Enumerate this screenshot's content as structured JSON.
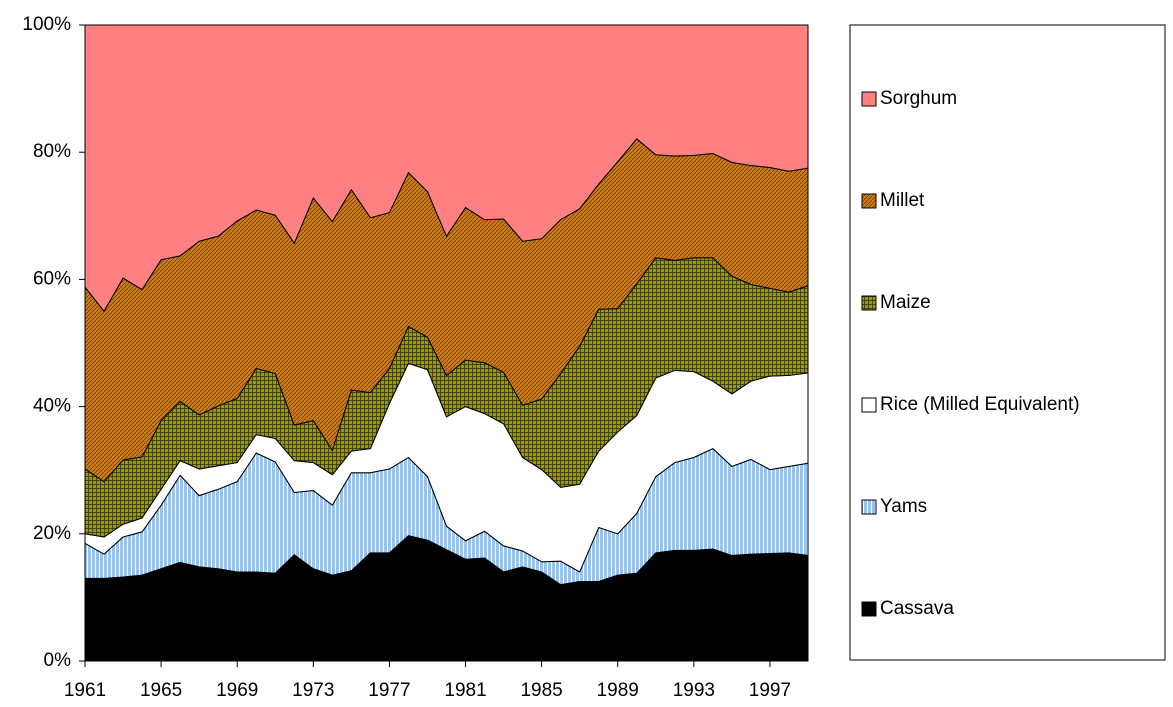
{
  "chart_data": {
    "type": "stacked_area_percent",
    "x": [
      1961,
      1962,
      1963,
      1964,
      1965,
      1966,
      1967,
      1968,
      1969,
      1970,
      1971,
      1972,
      1973,
      1974,
      1975,
      1976,
      1977,
      1978,
      1979,
      1980,
      1981,
      1982,
      1983,
      1984,
      1985,
      1986,
      1987,
      1988,
      1989,
      1990,
      1991,
      1992,
      1993,
      1994,
      1995,
      1996,
      1997,
      1998,
      1999
    ],
    "xlim": [
      1961,
      1999
    ],
    "xticks": [
      1961,
      1965,
      1969,
      1973,
      1977,
      1981,
      1985,
      1989,
      1993,
      1997
    ],
    "ylim": [
      0,
      100
    ],
    "yticks": [
      {
        "value": 0,
        "label": "0%"
      },
      {
        "value": 20,
        "label": "20%"
      },
      {
        "value": 40,
        "label": "40%"
      },
      {
        "value": 60,
        "label": "60%"
      },
      {
        "value": 80,
        "label": "80%"
      },
      {
        "value": 100,
        "label": "100%"
      }
    ],
    "legend": "right",
    "series": [
      {
        "name": "Cassava",
        "color": "#000000",
        "values": [
          13,
          13,
          13.2,
          13.5,
          14.5,
          15.5,
          14.8,
          14.5,
          14,
          14,
          13.8,
          16.7,
          14.5,
          13.5,
          14.2,
          17,
          17,
          19.7,
          19,
          17.5,
          16,
          16.2,
          14,
          14.8,
          14,
          12,
          12.5,
          12.5,
          13.5,
          13.8,
          17,
          17.4,
          17.4,
          17.6,
          16.6,
          16.8,
          16.9,
          17,
          16.6
        ]
      },
      {
        "name": "Yams",
        "color": "#99c3ec",
        "values": [
          5.5,
          3.8,
          6.3,
          6.8,
          10,
          13.7,
          11.2,
          12.5,
          14.2,
          18.7,
          17.5,
          9.8,
          12.3,
          11,
          15.4,
          12.6,
          13.2,
          12.3,
          10,
          3.7,
          2.9,
          4.2,
          4.1,
          2.5,
          1.6,
          3.7,
          1.5,
          8.5,
          6.5,
          9.4,
          12,
          13.8,
          14.6,
          15.8,
          14,
          14.9,
          13.2,
          13.6,
          14.5
        ]
      },
      {
        "name": "Rice (Milled Equivalent)",
        "color": "#ffffff",
        "values": [
          1.5,
          2.7,
          2,
          2.2,
          2.5,
          2.3,
          4.2,
          3.7,
          3,
          2.9,
          3.7,
          5,
          4.4,
          4.8,
          3.4,
          3.8,
          10.3,
          14.8,
          16.8,
          17.2,
          21.1,
          18.5,
          19.2,
          14.7,
          14.5,
          11.6,
          13.8,
          12,
          16,
          15.4,
          15.5,
          14.5,
          13.5,
          10.6,
          11.4,
          12.3,
          14.7,
          14.3,
          14.2
        ]
      },
      {
        "name": "Maize",
        "color": "#999900",
        "values": [
          10.2,
          8.7,
          10.1,
          9.6,
          10.8,
          9.3,
          8.5,
          9.4,
          10.1,
          10.4,
          10.2,
          5.6,
          6.6,
          3.8,
          9.6,
          8.8,
          5.5,
          5.8,
          5.1,
          6.5,
          7.3,
          8,
          8.1,
          8.2,
          11.1,
          17.9,
          21.7,
          22.3,
          19.4,
          20.7,
          18.9,
          17.3,
          17.9,
          19.4,
          18.5,
          15.2,
          13.8,
          13.1,
          13.7
        ]
      },
      {
        "name": "Millet",
        "color": "#cc7a1a",
        "values": [
          28.6,
          26.8,
          28.6,
          26.3,
          25.3,
          22.9,
          27.3,
          26.7,
          27.9,
          24.9,
          24.9,
          28.6,
          35,
          36,
          31.5,
          27.5,
          24.5,
          24.2,
          22.9,
          21.9,
          24,
          22.5,
          24.1,
          25.8,
          25.2,
          24.2,
          21.6,
          19.7,
          23.1,
          22.8,
          16.2,
          16.4,
          16.1,
          16.4,
          17.9,
          18.7,
          19,
          19,
          18.5
        ]
      },
      {
        "name": "Sorghum",
        "color": "#ff8080",
        "values": [
          41.2,
          45,
          39.8,
          41.6,
          36.9,
          36.3,
          34,
          33.2,
          30.8,
          29.1,
          29.9,
          34.3,
          27.2,
          30.9,
          25.9,
          30.3,
          29.5,
          23.2,
          26.2,
          33.2,
          28.7,
          30.6,
          30.5,
          34,
          33.6,
          30.6,
          28.9,
          25,
          21.5,
          17.9,
          20.4,
          20.6,
          20.5,
          20.2,
          21.6,
          22.1,
          22.4,
          23,
          22.5
        ]
      }
    ]
  }
}
